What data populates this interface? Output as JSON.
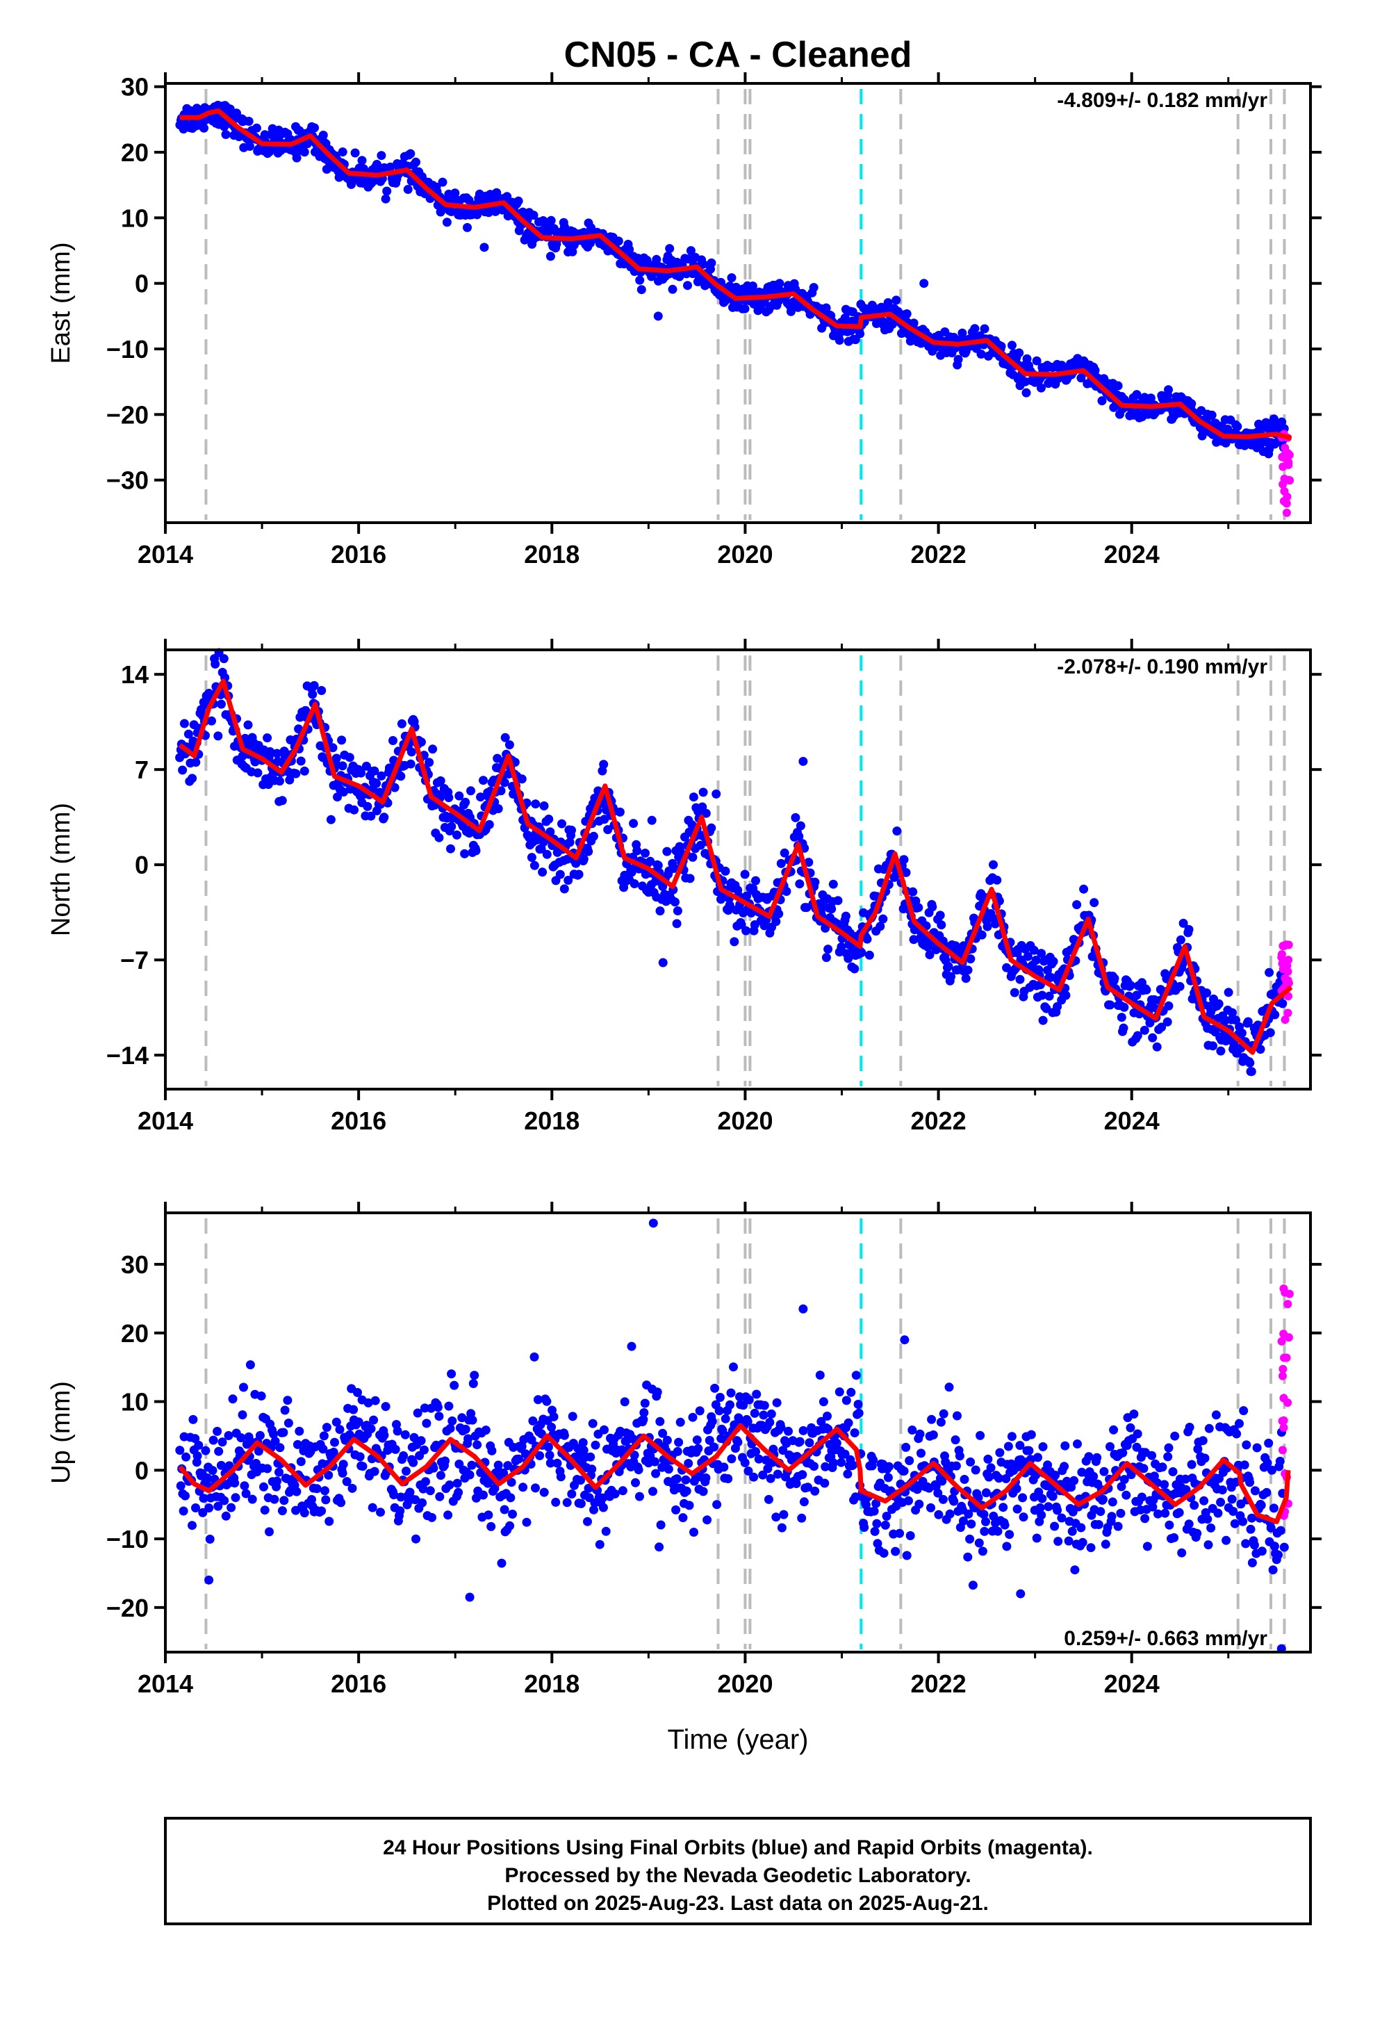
{
  "title": "CN05  - CA - Cleaned",
  "xlabel": "Time (year)",
  "footer": {
    "line1": "24 Hour Positions Using Final Orbits (blue) and Rapid Orbits (magenta).",
    "line2": "Processed by the Nevada Geodetic Laboratory.",
    "line3": "Plotted on 2025-Aug-23. Last data on 2025-Aug-21."
  },
  "colors": {
    "final": "#0000ff",
    "rapid": "#ff00ff",
    "model": "#ff0000",
    "equipment_change": "#bbbbbb",
    "earthquake": "#00e5ee"
  },
  "chart_data": [
    {
      "type": "scatter",
      "ylabel": "East (mm)",
      "rate_label": "-4.809+/- 0.182 mm/yr",
      "rate_position": "top-right",
      "xlim": [
        2014.0,
        2025.85
      ],
      "ylim": [
        -36.5,
        30.5
      ],
      "xticks": [
        2014,
        2016,
        2018,
        2020,
        2022,
        2024
      ],
      "yticks": [
        30,
        20,
        10,
        0,
        -10,
        -20,
        -30
      ],
      "model": {
        "x": [
          2014.15,
          2014.35,
          2014.45,
          2014.55,
          2014.75,
          2015.0,
          2015.3,
          2015.5,
          2015.7,
          2015.9,
          2016.2,
          2016.5,
          2016.7,
          2016.9,
          2017.2,
          2017.5,
          2017.7,
          2017.9,
          2018.2,
          2018.5,
          2018.7,
          2018.9,
          2019.2,
          2019.5,
          2019.7,
          2019.9,
          2020.2,
          2020.5,
          2020.7,
          2020.95,
          2021.19,
          2021.2,
          2021.5,
          2021.7,
          2021.95,
          2022.2,
          2022.5,
          2022.7,
          2022.9,
          2023.2,
          2023.5,
          2023.7,
          2023.9,
          2024.2,
          2024.5,
          2024.7,
          2024.95,
          2025.2,
          2025.5,
          2025.65
        ],
        "y": [
          25.3,
          25.3,
          26.0,
          26.3,
          23.8,
          21.3,
          21.2,
          22.5,
          19.5,
          16.8,
          16.5,
          17.3,
          14.5,
          12.0,
          11.6,
          12.3,
          9.5,
          7.0,
          6.8,
          7.3,
          4.8,
          2.2,
          1.9,
          2.5,
          -0.2,
          -2.3,
          -2.1,
          -1.6,
          -4.0,
          -6.5,
          -6.6,
          -5.2,
          -4.7,
          -6.8,
          -9.0,
          -9.3,
          -8.7,
          -11.3,
          -13.8,
          -13.9,
          -13.3,
          -16.0,
          -18.6,
          -18.8,
          -18.4,
          -21.0,
          -23.3,
          -23.4,
          -23.0,
          -23.6
        ]
      },
      "scatter_noise": 1.1,
      "outliers": [
        {
          "x": 2019.1,
          "y": -5.0
        },
        {
          "x": 2021.85,
          "y": 0.0
        },
        {
          "x": 2017.3,
          "y": 5.5
        }
      ],
      "rapid": {
        "x_range": [
          2025.55,
          2025.64
        ],
        "y_range": [
          -35.0,
          -21.5
        ]
      }
    },
    {
      "type": "scatter",
      "ylabel": "North (mm)",
      "rate_label": "-2.078+/- 0.190 mm/yr",
      "rate_position": "top-right",
      "xlim": [
        2014.0,
        2025.85
      ],
      "ylim": [
        -16.5,
        15.8
      ],
      "xticks": [
        2014,
        2016,
        2018,
        2020,
        2022,
        2024
      ],
      "yticks": [
        14,
        7,
        0,
        -7,
        -14
      ],
      "model": {
        "x": [
          2014.15,
          2014.3,
          2014.45,
          2014.6,
          2014.8,
          2015.0,
          2015.2,
          2015.35,
          2015.55,
          2015.75,
          2016.0,
          2016.25,
          2016.55,
          2016.75,
          2017.0,
          2017.25,
          2017.55,
          2017.75,
          2018.0,
          2018.25,
          2018.55,
          2018.75,
          2019.0,
          2019.25,
          2019.55,
          2019.75,
          2020.0,
          2020.25,
          2020.55,
          2020.75,
          2021.0,
          2021.19,
          2021.2,
          2021.35,
          2021.55,
          2021.75,
          2022.0,
          2022.25,
          2022.55,
          2022.75,
          2023.0,
          2023.25,
          2023.55,
          2023.75,
          2024.0,
          2024.25,
          2024.55,
          2024.75,
          2025.0,
          2025.25,
          2025.45,
          2025.65
        ],
        "y": [
          8.8,
          8.0,
          11.5,
          13.5,
          8.5,
          7.8,
          6.8,
          8.5,
          11.8,
          6.5,
          5.8,
          4.6,
          10.0,
          5.0,
          3.8,
          2.5,
          8.0,
          3.0,
          1.8,
          0.5,
          5.8,
          0.5,
          -0.3,
          -1.6,
          3.5,
          -1.8,
          -2.8,
          -3.8,
          1.5,
          -3.8,
          -5.0,
          -6.0,
          -5.2,
          -3.5,
          0.8,
          -4.2,
          -5.8,
          -7.2,
          -1.8,
          -7.0,
          -8.2,
          -9.2,
          -4.0,
          -9.0,
          -10.2,
          -11.3,
          -6.0,
          -11.2,
          -12.2,
          -13.8,
          -10.2,
          -9.0
        ]
      },
      "scatter_noise": 1.1,
      "outliers": [
        {
          "x": 2019.15,
          "y": -7.2
        },
        {
          "x": 2020.6,
          "y": 7.6
        },
        {
          "x": 2019.7,
          "y": 5.2
        }
      ],
      "rapid": {
        "x_range": [
          2025.55,
          2025.64
        ],
        "y_range": [
          -11.5,
          -5.8
        ]
      }
    },
    {
      "type": "scatter",
      "ylabel": "Up (mm)",
      "rate_label": "0.259+/- 0.663 mm/yr",
      "rate_position": "bottom-right",
      "xlim": [
        2014.0,
        2025.85
      ],
      "ylim": [
        -26.5,
        37.5
      ],
      "xticks": [
        2014,
        2016,
        2018,
        2020,
        2022,
        2024
      ],
      "yticks": [
        30,
        20,
        10,
        0,
        -10,
        -20
      ],
      "model": {
        "x": [
          2014.15,
          2014.3,
          2014.45,
          2014.7,
          2014.95,
          2015.2,
          2015.45,
          2015.7,
          2015.95,
          2016.2,
          2016.45,
          2016.7,
          2016.95,
          2017.2,
          2017.45,
          2017.7,
          2017.95,
          2018.2,
          2018.45,
          2018.7,
          2018.95,
          2019.2,
          2019.45,
          2019.7,
          2019.95,
          2020.2,
          2020.45,
          2020.7,
          2020.95,
          2021.15,
          2021.19,
          2021.2,
          2021.45,
          2021.7,
          2021.95,
          2022.2,
          2022.45,
          2022.7,
          2022.95,
          2023.2,
          2023.45,
          2023.7,
          2023.95,
          2024.2,
          2024.45,
          2024.7,
          2024.95,
          2025.12,
          2025.13,
          2025.3,
          2025.5,
          2025.6,
          2025.62
        ],
        "y": [
          0.5,
          -2.0,
          -3.0,
          0.0,
          4.0,
          1.5,
          -2.2,
          0.5,
          4.5,
          2.0,
          -2.0,
          0.5,
          4.5,
          2.0,
          -2.0,
          0.5,
          5.0,
          1.5,
          -2.5,
          1.0,
          5.0,
          2.0,
          -0.5,
          2.0,
          6.5,
          3.0,
          0.0,
          3.0,
          6.0,
          3.0,
          0.0,
          -3.0,
          -4.5,
          -2.0,
          1.0,
          -2.5,
          -5.5,
          -3.0,
          1.0,
          -2.0,
          -5.0,
          -3.0,
          1.0,
          -2.0,
          -5.0,
          -2.5,
          1.5,
          -0.5,
          -2.0,
          -6.5,
          -7.5,
          -4.0,
          0.0
        ]
      },
      "scatter_noise": 4.2,
      "outliers": [
        {
          "x": 2019.05,
          "y": 36.0
        },
        {
          "x": 2020.6,
          "y": 23.5
        },
        {
          "x": 2017.15,
          "y": -18.5
        },
        {
          "x": 2022.85,
          "y": -18.0
        },
        {
          "x": 2021.65,
          "y": 19.0
        },
        {
          "x": 2014.45,
          "y": -16.0
        },
        {
          "x": 2025.55,
          "y": -26.0
        }
      ],
      "rapid": {
        "x_range": [
          2025.55,
          2025.64
        ],
        "y_range": [
          -7.0,
          28.0
        ]
      }
    }
  ],
  "event_lines": {
    "equipment_change_x": [
      2014.42,
      2019.72,
      2020.0,
      2020.05,
      2021.61,
      2025.1,
      2025.44,
      2025.58
    ],
    "earthquake_x": [
      2021.2
    ]
  }
}
